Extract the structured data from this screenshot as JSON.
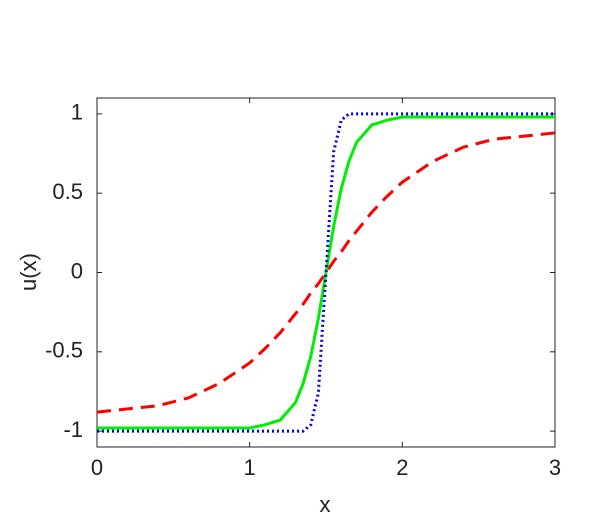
{
  "chart_data": {
    "type": "line",
    "xlabel": "x",
    "ylabel": "u(x)",
    "x": [
      0,
      0.2,
      0.4,
      0.6,
      0.8,
      1.0,
      1.1,
      1.2,
      1.3,
      1.35,
      1.4,
      1.45,
      1.5,
      1.55,
      1.6,
      1.65,
      1.7,
      1.8,
      1.9,
      2.0,
      2.2,
      2.4,
      2.6,
      2.8,
      3.0
    ],
    "series": [
      {
        "color": "#ff0000",
        "dash": "dashed",
        "values": [
          -0.88,
          -0.86,
          -0.84,
          -0.79,
          -0.7,
          -0.57,
          -0.48,
          -0.38,
          -0.26,
          -0.2,
          -0.13,
          -0.07,
          0,
          0.07,
          0.13,
          0.2,
          0.26,
          0.38,
          0.48,
          0.57,
          0.7,
          0.79,
          0.84,
          0.86,
          0.88
        ]
      },
      {
        "color": "#00ee00",
        "dash": "solid",
        "values": [
          -0.98,
          -0.98,
          -0.98,
          -0.98,
          -0.98,
          -0.98,
          -0.96,
          -0.93,
          -0.82,
          -0.7,
          -0.53,
          -0.29,
          0,
          0.29,
          0.53,
          0.7,
          0.82,
          0.93,
          0.96,
          0.98,
          0.98,
          0.98,
          0.98,
          0.98,
          0.98
        ]
      },
      {
        "color": "#0000ee",
        "dash": "dotted",
        "values": [
          -1.0,
          -1.0,
          -1.0,
          -1.0,
          -1.0,
          -1.0,
          -1.0,
          -1.0,
          -1.0,
          -1.0,
          -0.96,
          -0.76,
          0,
          0.76,
          0.96,
          1.0,
          1.0,
          1.0,
          1.0,
          1.0,
          1.0,
          1.0,
          1.0,
          1.0,
          1.0
        ]
      }
    ],
    "xlim": [
      0,
      3
    ],
    "xticks": [
      0,
      1,
      2,
      3
    ],
    "ylim": [
      -1.1,
      1.1
    ],
    "yticks": [
      -1,
      -0.5,
      0,
      0.5,
      1
    ]
  }
}
